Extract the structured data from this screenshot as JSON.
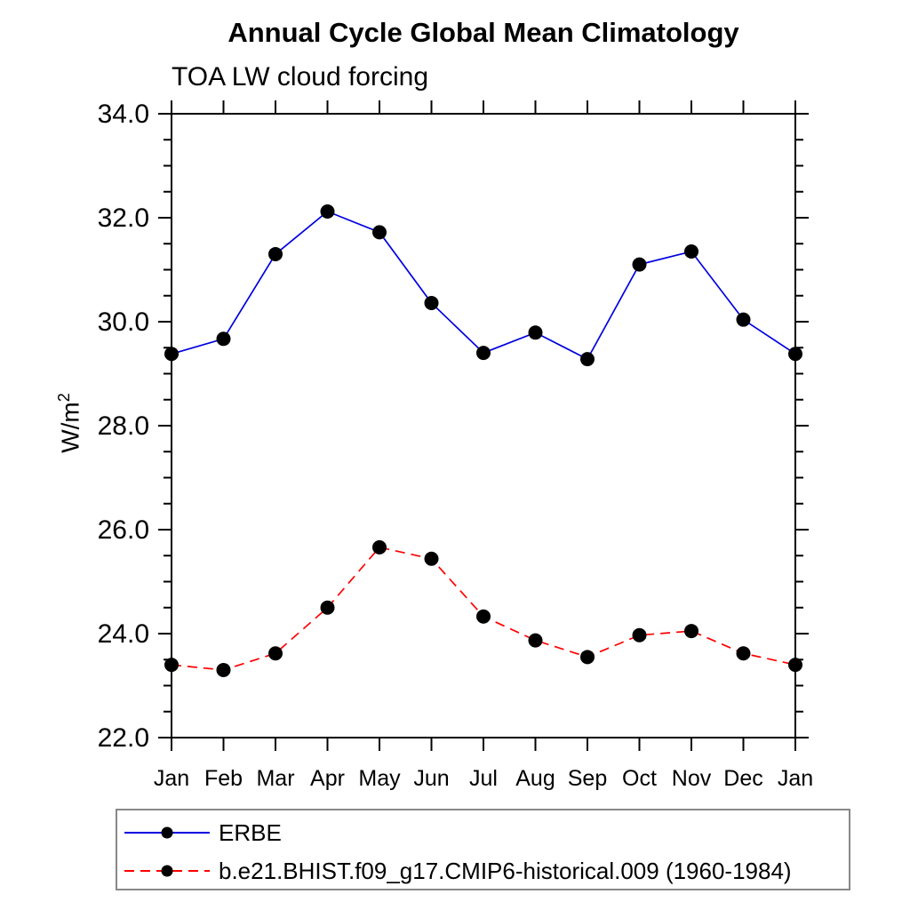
{
  "page": {
    "background": "#ffffff"
  },
  "chart_data": {
    "type": "line",
    "title": "Annual Cycle Global Mean Climatology",
    "subtitle": "TOA LW cloud forcing",
    "ylabel": "W/m^2",
    "ylabel_base": "W/m",
    "ylabel_exponent": "2",
    "x_categories": [
      "Jan",
      "Feb",
      "Mar",
      "Apr",
      "May",
      "Jun",
      "Jul",
      "Aug",
      "Sep",
      "Oct",
      "Nov",
      "Dec",
      "Jan"
    ],
    "ylim": [
      22.0,
      34.0
    ],
    "y_tick_values": [
      22,
      24,
      26,
      28,
      30,
      32,
      34
    ],
    "y_tick_labels": [
      "22.0",
      "24.0",
      "26.0",
      "28.0",
      "30.0",
      "32.0",
      "34.0"
    ],
    "y_minor_step": 0.5,
    "grid": false,
    "legend_position": "bottom-left-box",
    "axis_color": "#000000",
    "marker_color": "#000000",
    "series": [
      {
        "name": "ERBE",
        "color": "#0000e0",
        "line_style": "solid",
        "marker": "filled-circle",
        "values": [
          29.38,
          29.67,
          31.3,
          32.12,
          31.72,
          30.36,
          29.4,
          29.79,
          29.28,
          31.1,
          31.35,
          30.04,
          29.38
        ]
      },
      {
        "name": "b.e21.BHIST.f09_g17.CMIP6-historical.009 (1960-1984)",
        "color": "#ff0000",
        "line_style": "dashed",
        "marker": "filled-circle",
        "values": [
          23.4,
          23.3,
          23.62,
          24.5,
          25.66,
          25.44,
          24.33,
          23.87,
          23.55,
          23.97,
          24.05,
          23.62,
          23.4
        ]
      }
    ]
  }
}
